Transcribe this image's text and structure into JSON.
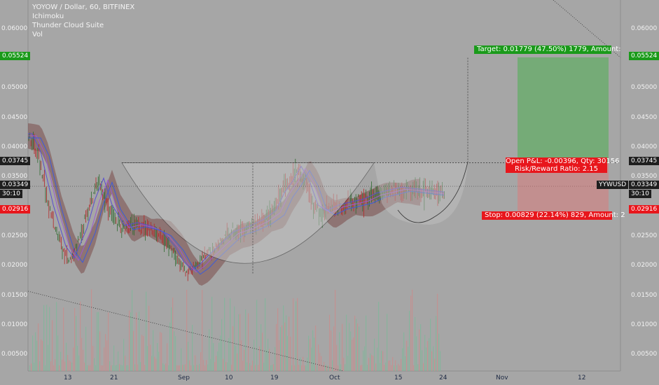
{
  "header": {
    "symbol_line": "YOYOW / Dollar, 60, BITFINEX",
    "indicators": [
      "Ichimoku",
      "Thunder Cloud Suite",
      "Vol"
    ]
  },
  "price_axis": {
    "ticks": [
      "0.06000",
      "0.05000",
      "0.04500",
      "0.04000",
      "0.03500",
      "0.02500",
      "0.02000",
      "0.01500",
      "0.01000",
      "0.00500"
    ],
    "tick_values": [
      0.06,
      0.05,
      0.045,
      0.04,
      0.035,
      0.025,
      0.02,
      0.015,
      0.01,
      0.005
    ]
  },
  "time_axis": {
    "labels": [
      "13",
      "21",
      "Sep",
      "10",
      "19",
      "Oct",
      "15",
      "24",
      "Nov",
      "12"
    ]
  },
  "price_tags": {
    "target_level": "0.05524",
    "entry_level": "0.03745",
    "current_price": "0.03349",
    "countdown": "30:10",
    "stop_level": "0.02916",
    "symbol_tag": "YYWUSD"
  },
  "position": {
    "target_text": "Target: 0.01779 (47.50%) 1779, Amount: ",
    "pnl_text": "Open P&L: -0.00396, Qty: 30156",
    "rr_text": "Risk/Reward Ratio: 2.15",
    "stop_text": "Stop: 0.00829 (22.14%) 829, Amount: 2"
  },
  "colors": {
    "background": "#a6a6a6",
    "target_green": "#1a9a1a",
    "stop_red": "#e8161c",
    "candle_up": "#2e7d32",
    "candle_down": "#c62828",
    "cloud": "#7a4b48",
    "entry_tag": "#1f1f1f"
  },
  "chart_data": {
    "type": "candlestick",
    "symbol": "YOYOW / Dollar",
    "interval": "60",
    "exchange": "BITFINEX",
    "ylim": [
      0.0,
      0.0645
    ],
    "levels": {
      "target": 0.05524,
      "entry": 0.03745,
      "current": 0.03349,
      "stop": 0.02916
    },
    "price_path": [
      [
        0.0,
        0.042
      ],
      [
        0.02,
        0.039
      ],
      [
        0.05,
        0.03
      ],
      [
        0.08,
        0.023
      ],
      [
        0.1,
        0.021
      ],
      [
        0.13,
        0.026
      ],
      [
        0.15,
        0.031
      ],
      [
        0.17,
        0.0345
      ],
      [
        0.19,
        0.03
      ],
      [
        0.22,
        0.0265
      ],
      [
        0.25,
        0.027
      ],
      [
        0.28,
        0.0265
      ],
      [
        0.31,
        0.0255
      ],
      [
        0.34,
        0.023
      ],
      [
        0.36,
        0.0205
      ],
      [
        0.38,
        0.019
      ],
      [
        0.4,
        0.02
      ],
      [
        0.42,
        0.0215
      ],
      [
        0.45,
        0.0235
      ],
      [
        0.48,
        0.0255
      ],
      [
        0.52,
        0.0265
      ],
      [
        0.55,
        0.0275
      ],
      [
        0.58,
        0.029
      ],
      [
        0.6,
        0.032
      ],
      [
        0.62,
        0.034
      ],
      [
        0.64,
        0.0365
      ],
      [
        0.66,
        0.034
      ],
      [
        0.68,
        0.03
      ],
      [
        0.7,
        0.029
      ],
      [
        0.73,
        0.03
      ],
      [
        0.76,
        0.0305
      ],
      [
        0.79,
        0.031
      ],
      [
        0.82,
        0.032
      ],
      [
        0.85,
        0.0325
      ],
      [
        0.88,
        0.033
      ],
      [
        1.0,
        0.032
      ]
    ],
    "patterns": [
      "cup-and-handle"
    ]
  }
}
